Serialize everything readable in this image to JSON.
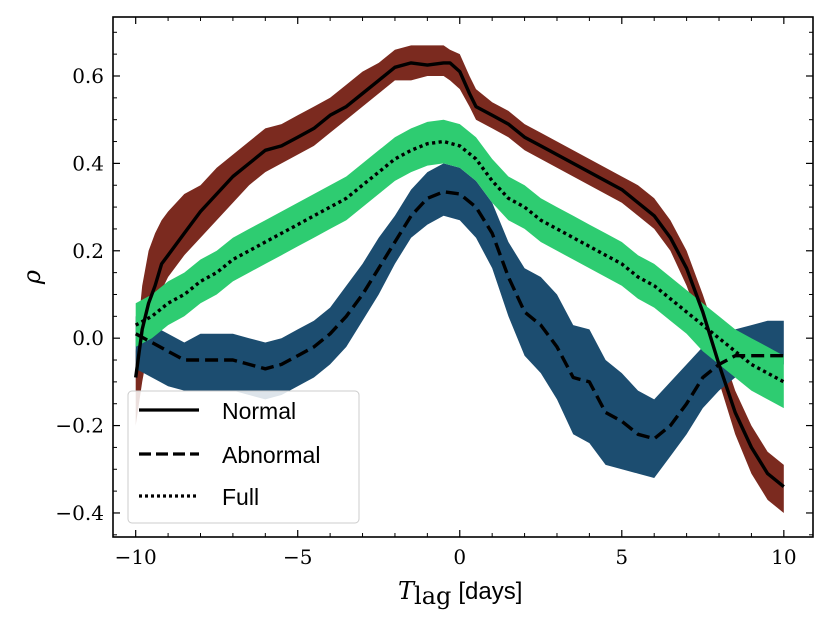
{
  "chart_data": {
    "type": "line",
    "xlabel_main": "T",
    "xlabel_sub": "lag",
    "xlabel_unit": "[days]",
    "ylabel": "ρ",
    "xlim": [
      -10.7,
      10.9
    ],
    "ylim": [
      -0.455,
      0.735
    ],
    "xticks": [
      -10,
      -5,
      0,
      5,
      10
    ],
    "xtick_labels": [
      "−10",
      "−5",
      "0",
      "5",
      "10"
    ],
    "yticks": [
      -0.4,
      -0.2,
      0.0,
      0.2,
      0.4,
      0.6
    ],
    "ytick_labels": [
      "−0.4",
      "−0.2",
      "0.0",
      "0.2",
      "0.4",
      "0.6"
    ],
    "legend_position": "lower-left",
    "series": [
      {
        "name": "Normal",
        "style": "solid",
        "band_color": "#7b2a1f",
        "x": [
          -10,
          -9.8,
          -9.6,
          -9.4,
          -9.2,
          -9,
          -8.5,
          -8,
          -7.5,
          -7,
          -6.5,
          -6,
          -5.5,
          -5,
          -4.5,
          -4,
          -3.5,
          -3,
          -2.5,
          -2,
          -1.5,
          -1,
          -0.5,
          -0.3,
          0,
          0.3,
          0.5,
          1,
          1.5,
          2,
          2.5,
          3,
          3.5,
          4,
          4.5,
          5,
          5.5,
          6,
          6.5,
          7,
          7.5,
          8,
          8.5,
          9,
          9.5,
          10
        ],
        "y": [
          -0.09,
          0.02,
          0.08,
          0.12,
          0.17,
          0.19,
          0.24,
          0.29,
          0.33,
          0.37,
          0.4,
          0.43,
          0.44,
          0.46,
          0.48,
          0.51,
          0.53,
          0.56,
          0.59,
          0.62,
          0.63,
          0.625,
          0.63,
          0.63,
          0.61,
          0.56,
          0.53,
          0.51,
          0.49,
          0.46,
          0.44,
          0.42,
          0.4,
          0.38,
          0.36,
          0.34,
          0.31,
          0.28,
          0.23,
          0.16,
          0.06,
          -0.06,
          -0.17,
          -0.25,
          -0.31,
          -0.34
        ],
        "lower": [
          -0.2,
          -0.1,
          -0.02,
          0.06,
          0.11,
          0.14,
          0.19,
          0.23,
          0.27,
          0.31,
          0.35,
          0.38,
          0.4,
          0.42,
          0.44,
          0.47,
          0.5,
          0.53,
          0.56,
          0.59,
          0.59,
          0.6,
          0.6,
          0.59,
          0.57,
          0.53,
          0.5,
          0.48,
          0.46,
          0.43,
          0.41,
          0.39,
          0.37,
          0.35,
          0.33,
          0.31,
          0.28,
          0.25,
          0.2,
          0.12,
          0.02,
          -0.1,
          -0.22,
          -0.31,
          -0.37,
          -0.4
        ],
        "upper": [
          -0.03,
          0.12,
          0.2,
          0.24,
          0.27,
          0.29,
          0.33,
          0.35,
          0.39,
          0.42,
          0.45,
          0.48,
          0.49,
          0.51,
          0.53,
          0.55,
          0.58,
          0.61,
          0.63,
          0.66,
          0.67,
          0.67,
          0.67,
          0.66,
          0.65,
          0.6,
          0.57,
          0.54,
          0.52,
          0.49,
          0.47,
          0.45,
          0.43,
          0.41,
          0.39,
          0.37,
          0.35,
          0.32,
          0.27,
          0.2,
          0.1,
          -0.01,
          -0.12,
          -0.2,
          -0.26,
          -0.29
        ]
      },
      {
        "name": "Abnormal",
        "style": "dashed",
        "band_color": "#1c4d70",
        "x": [
          -10,
          -9.5,
          -9,
          -8.5,
          -8,
          -7.5,
          -7,
          -6.5,
          -6,
          -5.5,
          -5,
          -4.5,
          -4,
          -3.5,
          -3,
          -2.5,
          -2,
          -1.5,
          -1,
          -0.5,
          0,
          0.5,
          1,
          1.5,
          2,
          2.5,
          3,
          3.5,
          4,
          4.5,
          5,
          5.5,
          6,
          6.5,
          7,
          7.5,
          8,
          8.5,
          9,
          9.5,
          10
        ],
        "y": [
          0.01,
          -0.01,
          -0.03,
          -0.05,
          -0.05,
          -0.05,
          -0.05,
          -0.06,
          -0.07,
          -0.06,
          -0.04,
          -0.02,
          0.01,
          0.05,
          0.1,
          0.16,
          0.22,
          0.28,
          0.32,
          0.335,
          0.33,
          0.3,
          0.24,
          0.14,
          0.06,
          0.03,
          -0.02,
          -0.09,
          -0.1,
          -0.17,
          -0.19,
          -0.22,
          -0.23,
          -0.2,
          -0.15,
          -0.09,
          -0.06,
          -0.04,
          -0.04,
          -0.04,
          -0.04
        ],
        "lower": [
          -0.07,
          -0.09,
          -0.11,
          -0.12,
          -0.12,
          -0.12,
          -0.12,
          -0.13,
          -0.14,
          -0.13,
          -0.11,
          -0.09,
          -0.06,
          -0.02,
          0.04,
          0.1,
          0.17,
          0.23,
          0.26,
          0.28,
          0.27,
          0.23,
          0.16,
          0.05,
          -0.04,
          -0.08,
          -0.14,
          -0.22,
          -0.24,
          -0.29,
          -0.3,
          -0.31,
          -0.32,
          -0.27,
          -0.22,
          -0.16,
          -0.12,
          -0.09,
          -0.08,
          -0.07,
          -0.06
        ],
        "upper": [
          0.05,
          0.03,
          0.01,
          -0.01,
          0.01,
          0.01,
          0.01,
          0.0,
          -0.01,
          0.0,
          0.02,
          0.04,
          0.07,
          0.12,
          0.17,
          0.23,
          0.28,
          0.34,
          0.38,
          0.4,
          0.39,
          0.36,
          0.31,
          0.22,
          0.16,
          0.14,
          0.1,
          0.03,
          0.02,
          -0.05,
          -0.08,
          -0.12,
          -0.14,
          -0.1,
          -0.06,
          -0.02,
          0.0,
          0.02,
          0.03,
          0.04,
          0.04
        ]
      },
      {
        "name": "Full",
        "style": "dotted",
        "band_color": "#2ecc71",
        "x": [
          -10,
          -9.5,
          -9,
          -8.5,
          -8,
          -7.5,
          -7,
          -6.5,
          -6,
          -5.5,
          -5,
          -4.5,
          -4,
          -3.5,
          -3,
          -2.5,
          -2,
          -1.5,
          -1,
          -0.5,
          0,
          0.5,
          1,
          1.5,
          2,
          2.5,
          3,
          3.5,
          4,
          4.5,
          5,
          5.5,
          6,
          6.5,
          7,
          7.5,
          8,
          8.5,
          9,
          9.5,
          10
        ],
        "y": [
          0.03,
          0.05,
          0.08,
          0.1,
          0.13,
          0.15,
          0.18,
          0.2,
          0.22,
          0.24,
          0.26,
          0.28,
          0.3,
          0.32,
          0.35,
          0.38,
          0.41,
          0.43,
          0.445,
          0.45,
          0.44,
          0.41,
          0.36,
          0.32,
          0.3,
          0.27,
          0.25,
          0.23,
          0.21,
          0.19,
          0.17,
          0.14,
          0.12,
          0.09,
          0.06,
          0.03,
          0.0,
          -0.03,
          -0.06,
          -0.08,
          -0.1
        ],
        "lower": [
          -0.02,
          0.0,
          0.03,
          0.05,
          0.08,
          0.1,
          0.13,
          0.15,
          0.17,
          0.19,
          0.21,
          0.23,
          0.25,
          0.27,
          0.3,
          0.33,
          0.36,
          0.38,
          0.395,
          0.4,
          0.39,
          0.36,
          0.31,
          0.27,
          0.25,
          0.22,
          0.2,
          0.18,
          0.16,
          0.14,
          0.12,
          0.09,
          0.07,
          0.04,
          0.01,
          -0.03,
          -0.06,
          -0.09,
          -0.12,
          -0.14,
          -0.16
        ],
        "upper": [
          0.08,
          0.1,
          0.13,
          0.15,
          0.18,
          0.2,
          0.23,
          0.25,
          0.27,
          0.29,
          0.31,
          0.33,
          0.35,
          0.37,
          0.4,
          0.43,
          0.46,
          0.48,
          0.495,
          0.5,
          0.49,
          0.46,
          0.41,
          0.37,
          0.35,
          0.32,
          0.3,
          0.28,
          0.26,
          0.24,
          0.22,
          0.19,
          0.17,
          0.14,
          0.11,
          0.08,
          0.05,
          0.02,
          0.0,
          -0.02,
          -0.04
        ]
      }
    ]
  }
}
